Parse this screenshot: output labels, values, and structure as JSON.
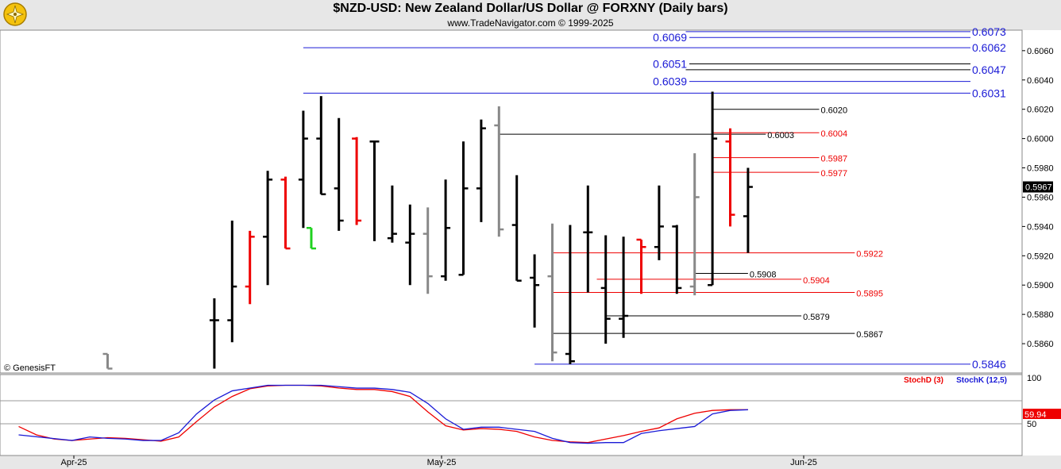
{
  "header": {
    "title": "$NZD-USD:  New Zealand Dollar/US Dollar @ FORXNY  (Daily bars)",
    "subtitle": "www.TradeNavigator.com © 1999-2025",
    "copyright": "© GenesisFT"
  },
  "colors": {
    "up_bar": "#000000",
    "down_bar": "#ee0000",
    "neutral_bar": "#888888",
    "green_bar": "#1fd11f",
    "blue_line": "#1a1ad6",
    "red_line": "#ee0000",
    "black_line": "#000000",
    "stoch_k": "#1a1ad6",
    "stoch_d": "#ee0000"
  },
  "chart_data": {
    "type": "ohlc",
    "price_axis": {
      "ticks": [
        "0.6060",
        "0.6040",
        "0.6020",
        "0.6000",
        "0.5980",
        "0.5960",
        "0.5940",
        "0.5920",
        "0.5900",
        "0.5880",
        "0.5860"
      ],
      "ylim": [
        0.584,
        0.6074
      ]
    },
    "last_price": "0.5967",
    "date_ticks": [
      {
        "label": "Apr-25",
        "index": 5
      },
      {
        "label": "May-25",
        "index": 24
      },
      {
        "label": "Jun-25",
        "index": 44
      }
    ],
    "bars": [
      {
        "i": 5,
        "o": 0.5853,
        "h": 0.5853,
        "l": 0.5843,
        "c": 0.5843,
        "col": "neutral"
      },
      {
        "i": 11,
        "o": 0.5876,
        "h": 0.5891,
        "l": 0.5843,
        "c": 0.5876,
        "col": "up"
      },
      {
        "i": 12,
        "o": 0.5876,
        "h": 0.5944,
        "l": 0.5861,
        "c": 0.5899,
        "col": "up"
      },
      {
        "i": 13,
        "o": 0.5899,
        "h": 0.5937,
        "l": 0.5887,
        "c": 0.5933,
        "col": "down"
      },
      {
        "i": 14,
        "o": 0.5933,
        "h": 0.5978,
        "l": 0.59,
        "c": 0.5972,
        "col": "up"
      },
      {
        "i": 15,
        "o": 0.5972,
        "h": 0.5974,
        "l": 0.5925,
        "c": 0.5925,
        "col": "down"
      },
      {
        "i": 16,
        "o": 0.5972,
        "h": 0.6019,
        "l": 0.5939,
        "c": 0.6,
        "col": "up"
      },
      {
        "i": 16.45,
        "o": 0.5939,
        "h": 0.5939,
        "l": 0.5925,
        "c": 0.5925,
        "col": "green"
      },
      {
        "i": 17,
        "o": 0.6,
        "h": 0.6029,
        "l": 0.5962,
        "c": 0.5962,
        "col": "up"
      },
      {
        "i": 18,
        "o": 0.5966,
        "h": 0.6014,
        "l": 0.5937,
        "c": 0.5944,
        "col": "up"
      },
      {
        "i": 19,
        "o": 0.6,
        "h": 0.6001,
        "l": 0.5941,
        "c": 0.5944,
        "col": "down"
      },
      {
        "i": 20,
        "o": 0.5998,
        "h": 0.5998,
        "l": 0.593,
        "c": 0.5998,
        "col": "up"
      },
      {
        "i": 21,
        "o": 0.5932,
        "h": 0.5968,
        "l": 0.5929,
        "c": 0.5935,
        "col": "up"
      },
      {
        "i": 22,
        "o": 0.5929,
        "h": 0.5955,
        "l": 0.59,
        "c": 0.5935,
        "col": "up"
      },
      {
        "i": 23,
        "o": 0.5935,
        "h": 0.5953,
        "l": 0.5894,
        "c": 0.5906,
        "col": "neutral"
      },
      {
        "i": 24,
        "o": 0.5906,
        "h": 0.5972,
        "l": 0.5903,
        "c": 0.5939,
        "col": "up"
      },
      {
        "i": 25,
        "o": 0.5907,
        "h": 0.5998,
        "l": 0.5907,
        "c": 0.5966,
        "col": "up"
      },
      {
        "i": 26,
        "o": 0.5966,
        "h": 0.6013,
        "l": 0.5943,
        "c": 0.6007,
        "col": "up"
      },
      {
        "i": 27,
        "o": 0.6009,
        "h": 0.6022,
        "l": 0.5933,
        "c": 0.5938,
        "col": "neutral"
      },
      {
        "i": 28,
        "o": 0.5941,
        "h": 0.5975,
        "l": 0.5903,
        "c": 0.5903,
        "col": "up"
      },
      {
        "i": 29,
        "o": 0.5905,
        "h": 0.5921,
        "l": 0.5871,
        "c": 0.59,
        "col": "up"
      },
      {
        "i": 30,
        "o": 0.5906,
        "h": 0.5942,
        "l": 0.5848,
        "c": 0.5854,
        "col": "neutral"
      },
      {
        "i": 31,
        "o": 0.5853,
        "h": 0.5941,
        "l": 0.5846,
        "c": 0.5848,
        "col": "up"
      },
      {
        "i": 32,
        "o": 0.5936,
        "h": 0.5968,
        "l": 0.5895,
        "c": 0.5936,
        "col": "up"
      },
      {
        "i": 33,
        "o": 0.5898,
        "h": 0.5934,
        "l": 0.586,
        "c": 0.5877,
        "col": "up"
      },
      {
        "i": 34,
        "o": 0.5877,
        "h": 0.5933,
        "l": 0.5864,
        "c": 0.5879,
        "col": "up"
      },
      {
        "i": 35,
        "o": 0.5931,
        "h": 0.5931,
        "l": 0.5894,
        "c": 0.5926,
        "col": "down"
      },
      {
        "i": 36,
        "o": 0.5926,
        "h": 0.5968,
        "l": 0.5917,
        "c": 0.594,
        "col": "up"
      },
      {
        "i": 37,
        "o": 0.594,
        "h": 0.5941,
        "l": 0.5894,
        "c": 0.5898,
        "col": "up"
      },
      {
        "i": 38,
        "o": 0.5899,
        "h": 0.599,
        "l": 0.5893,
        "c": 0.596,
        "col": "neutral"
      },
      {
        "i": 39,
        "o": 0.59,
        "h": 0.6032,
        "l": 0.59,
        "c": 0.6,
        "col": "up"
      },
      {
        "i": 40,
        "o": 0.5998,
        "h": 0.6007,
        "l": 0.594,
        "c": 0.5948,
        "col": "down"
      },
      {
        "i": 41,
        "o": 0.5947,
        "h": 0.598,
        "l": 0.5922,
        "c": 0.5967,
        "col": "up"
      }
    ],
    "levels": [
      {
        "price": 0.6073,
        "label": "0.6073",
        "color": "blue",
        "from": 37.5,
        "labelAt": "right"
      },
      {
        "price": 0.6069,
        "label": "0.6069",
        "color": "blue",
        "from": 37.5,
        "labelAt": "left"
      },
      {
        "price": 0.6062,
        "label": "0.6062",
        "color": "blue",
        "from": 16,
        "labelAt": "right"
      },
      {
        "price": 0.6051,
        "label": "0.6051",
        "color": "black",
        "from": 37.5,
        "labelAt": "left"
      },
      {
        "price": 0.6047,
        "label": "0.6047",
        "color": "black",
        "from": 37.5,
        "labelAt": "right"
      },
      {
        "price": 0.6039,
        "label": "0.6039",
        "color": "blue",
        "from": 37.5,
        "labelAt": "left"
      },
      {
        "price": 0.6031,
        "label": "0.6031",
        "color": "blue",
        "from": 16,
        "labelAt": "right"
      },
      {
        "price": 0.602,
        "label": "0.6020",
        "color": "black",
        "from": 39,
        "to": 45,
        "labelAt": "mid"
      },
      {
        "price": 0.6004,
        "label": "0.6004",
        "color": "red",
        "from": 39,
        "to": 45,
        "labelAt": "mid"
      },
      {
        "price": 0.6003,
        "label": "0.6003",
        "color": "black",
        "from": 27,
        "to": 42,
        "labelAt": "mid"
      },
      {
        "price": 0.5987,
        "label": "0.5987",
        "color": "red",
        "from": 39,
        "to": 45,
        "labelAt": "mid"
      },
      {
        "price": 0.5977,
        "label": "0.5977",
        "color": "red",
        "from": 39,
        "to": 45,
        "labelAt": "mid"
      },
      {
        "price": 0.5922,
        "label": "0.5922",
        "color": "red",
        "from": 30,
        "to": 47,
        "labelAt": "mid"
      },
      {
        "price": 0.5908,
        "label": "0.5908",
        "color": "black",
        "from": 38,
        "to": 41,
        "labelAt": "mid"
      },
      {
        "price": 0.5904,
        "label": "0.5904",
        "color": "red",
        "from": 32.5,
        "to": 44,
        "labelAt": "mid"
      },
      {
        "price": 0.5895,
        "label": "0.5895",
        "color": "red",
        "from": 30,
        "to": 47,
        "labelAt": "mid"
      },
      {
        "price": 0.5879,
        "label": "0.5879",
        "color": "black",
        "from": 33,
        "to": 44,
        "labelAt": "mid"
      },
      {
        "price": 0.5867,
        "label": "0.5867",
        "color": "black",
        "from": 30,
        "to": 47,
        "labelAt": "mid"
      },
      {
        "price": 0.5846,
        "label": "0.5846",
        "color": "blue",
        "from": 29,
        "labelAt": "right"
      }
    ],
    "stochastic": {
      "labels": [
        "StochD (3)",
        "StochK (12,5)"
      ],
      "ticks": [
        "100",
        "50"
      ],
      "ylim": [
        0,
        100
      ],
      "last_value": "59.94",
      "k": [
        [
          0,
          25
        ],
        [
          3,
          17
        ],
        [
          4,
          22
        ],
        [
          5,
          20
        ],
        [
          6,
          19
        ],
        [
          7,
          17
        ],
        [
          8,
          17
        ],
        [
          9,
          28
        ],
        [
          10,
          55
        ],
        [
          11,
          75
        ],
        [
          12,
          88
        ],
        [
          13,
          92
        ],
        [
          14,
          96
        ],
        [
          15,
          96
        ],
        [
          16,
          96
        ],
        [
          17,
          96
        ],
        [
          18,
          94
        ],
        [
          19,
          92
        ],
        [
          20,
          92
        ],
        [
          21,
          90
        ],
        [
          22,
          86
        ],
        [
          23,
          70
        ],
        [
          24,
          48
        ],
        [
          25,
          33
        ],
        [
          26,
          36
        ],
        [
          27,
          36
        ],
        [
          28,
          33
        ],
        [
          29,
          30
        ],
        [
          30,
          20
        ],
        [
          31,
          14
        ],
        [
          32,
          13
        ],
        [
          33,
          14
        ],
        [
          34,
          14
        ],
        [
          35,
          27
        ],
        [
          36,
          31
        ],
        [
          37,
          34
        ],
        [
          38,
          37
        ],
        [
          39,
          55
        ],
        [
          40,
          60
        ],
        [
          41,
          61
        ]
      ],
      "d": [
        [
          0,
          37
        ],
        [
          1,
          25
        ],
        [
          2,
          19
        ],
        [
          3,
          17
        ],
        [
          4,
          19
        ],
        [
          5,
          21
        ],
        [
          6,
          20
        ],
        [
          7,
          18
        ],
        [
          8,
          16
        ],
        [
          9,
          22
        ],
        [
          10,
          44
        ],
        [
          11,
          65
        ],
        [
          12,
          80
        ],
        [
          13,
          91
        ],
        [
          14,
          95
        ],
        [
          15,
          96
        ],
        [
          16,
          96
        ],
        [
          17,
          95
        ],
        [
          18,
          92
        ],
        [
          19,
          90
        ],
        [
          20,
          90
        ],
        [
          21,
          87
        ],
        [
          22,
          80
        ],
        [
          23,
          58
        ],
        [
          24,
          38
        ],
        [
          25,
          32
        ],
        [
          26,
          34
        ],
        [
          27,
          33
        ],
        [
          28,
          30
        ],
        [
          29,
          22
        ],
        [
          30,
          17
        ],
        [
          31,
          15
        ],
        [
          32,
          14
        ],
        [
          33,
          19
        ],
        [
          34,
          24
        ],
        [
          35,
          30
        ],
        [
          36,
          35
        ],
        [
          37,
          48
        ],
        [
          38,
          56
        ],
        [
          39,
          60
        ],
        [
          40,
          61
        ],
        [
          41,
          61
        ]
      ]
    }
  }
}
